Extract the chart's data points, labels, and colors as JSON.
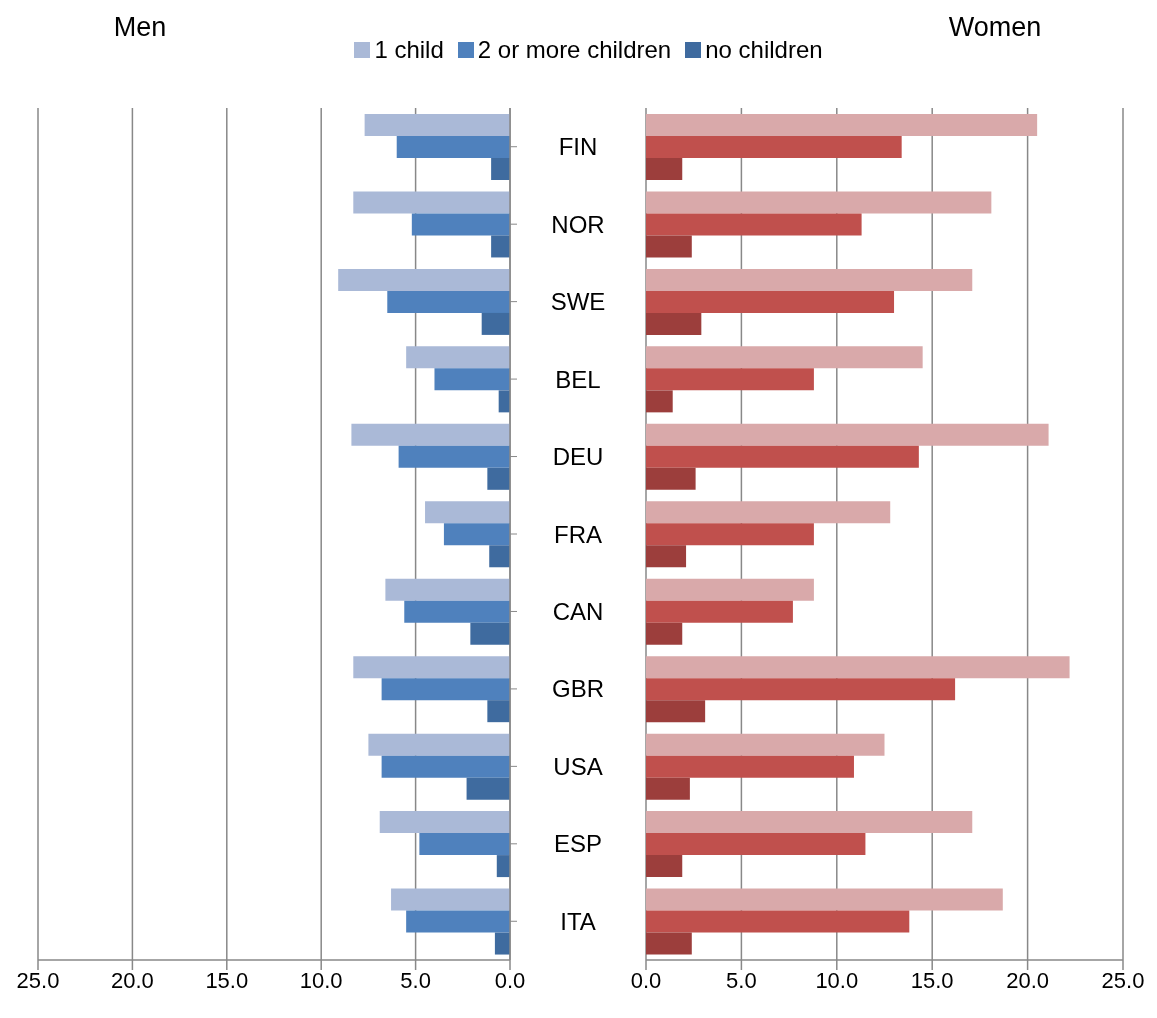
{
  "chart_data": [
    {
      "type": "bar",
      "title": "Men",
      "orientation": "horizontal",
      "legend": "top",
      "grid": "x",
      "categories": [
        "FIN",
        "NOR",
        "SWE",
        "BEL",
        "DEU",
        "FRA",
        "CAN",
        "GBR",
        "USA",
        "ESP",
        "ITA"
      ],
      "xlim": [
        25,
        0
      ],
      "xticks": [
        {
          "value": 25,
          "label": "25.0"
        },
        {
          "value": 20,
          "label": "20.0"
        },
        {
          "value": 15,
          "label": "15.0"
        },
        {
          "value": 10,
          "label": "10.0"
        },
        {
          "value": 5,
          "label": "5.0"
        },
        {
          "value": 0,
          "label": "0.0"
        }
      ],
      "series": [
        {
          "name": "1 child",
          "color": "#aab9d7",
          "values": [
            7.7,
            8.3,
            9.1,
            5.5,
            8.4,
            4.5,
            6.6,
            8.3,
            7.5,
            6.9,
            6.3
          ]
        },
        {
          "name": "2 or more children",
          "color": "#4f81bd",
          "values": [
            6.0,
            5.2,
            6.5,
            4.0,
            5.9,
            3.5,
            5.6,
            6.8,
            6.8,
            4.8,
            5.5
          ]
        },
        {
          "name": "no children",
          "color": "#3f6b9f",
          "values": [
            1.0,
            1.0,
            1.5,
            0.6,
            1.2,
            1.1,
            2.1,
            1.2,
            2.3,
            0.7,
            0.8
          ]
        }
      ]
    },
    {
      "type": "bar",
      "title": "Women",
      "orientation": "horizontal",
      "grid": "x",
      "tick_labels": "x",
      "categories": [
        null,
        null,
        null,
        null,
        null,
        null,
        null,
        null,
        null,
        null,
        null
      ],
      "xlim": [
        0,
        25
      ],
      "xticks": [
        {
          "value": 0,
          "label": "0.0"
        },
        {
          "value": 5,
          "label": "5.0"
        },
        {
          "value": 10,
          "label": "10.0"
        },
        {
          "value": 15,
          "label": "15.0"
        },
        {
          "value": 20,
          "label": "20.0"
        },
        {
          "value": 25,
          "label": "25.0"
        }
      ],
      "series": [
        {
          "color": "#d9a9aa",
          "values": [
            20.5,
            18.1,
            17.1,
            14.5,
            21.1,
            12.8,
            8.8,
            22.2,
            12.5,
            17.1,
            18.7
          ]
        },
        {
          "color": "#c0504d",
          "values": [
            13.4,
            11.3,
            13.0,
            8.8,
            14.3,
            8.8,
            7.7,
            16.2,
            10.9,
            11.5,
            13.8
          ]
        },
        {
          "color": "#9c3e3c",
          "values": [
            1.9,
            2.4,
            2.9,
            1.4,
            2.6,
            2.1,
            1.9,
            3.1,
            2.3,
            1.9,
            2.4
          ]
        }
      ]
    }
  ]
}
